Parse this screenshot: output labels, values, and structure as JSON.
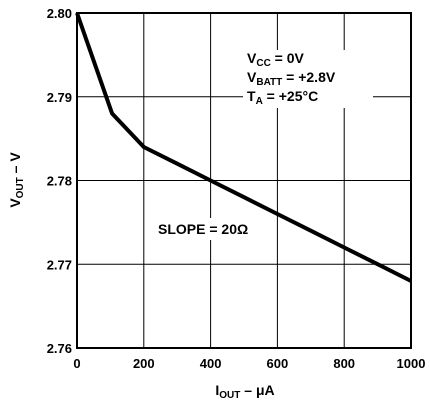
{
  "chart_data": {
    "type": "line",
    "xlabel": {
      "main": "I",
      "sub": "OUT",
      "rest": " – μA"
    },
    "ylabel": {
      "main": "V",
      "sub": "OUT",
      "rest": " – V"
    },
    "xlim": [
      0,
      1000
    ],
    "ylim": [
      2.76,
      2.8
    ],
    "xticks": [
      0,
      200,
      400,
      600,
      800,
      1000
    ],
    "yticks": [
      2.76,
      2.77,
      2.78,
      2.79,
      2.8
    ],
    "xtick_labels": [
      "0",
      "200",
      "400",
      "600",
      "800",
      "1000"
    ],
    "ytick_labels": [
      "2.76",
      "2.77",
      "2.78",
      "2.79",
      "2.80"
    ],
    "grid": true,
    "series": [
      {
        "x": [
          0,
          105,
          200,
          300,
          400,
          500,
          600,
          700,
          800,
          900,
          1000
        ],
        "y": [
          2.8,
          2.788,
          2.784,
          2.782,
          2.78,
          2.778,
          2.776,
          2.774,
          2.772,
          2.77,
          2.768
        ]
      }
    ],
    "annotations": {
      "conditions": [
        {
          "main": "V",
          "sub": "CC",
          "rest": " = 0V"
        },
        {
          "main": "V",
          "sub": "BATT",
          "rest": " = +2.8V"
        },
        {
          "main": "T",
          "sub": "A",
          "rest": " = +25°C"
        }
      ],
      "slope": "SLOPE = 20Ω"
    }
  }
}
